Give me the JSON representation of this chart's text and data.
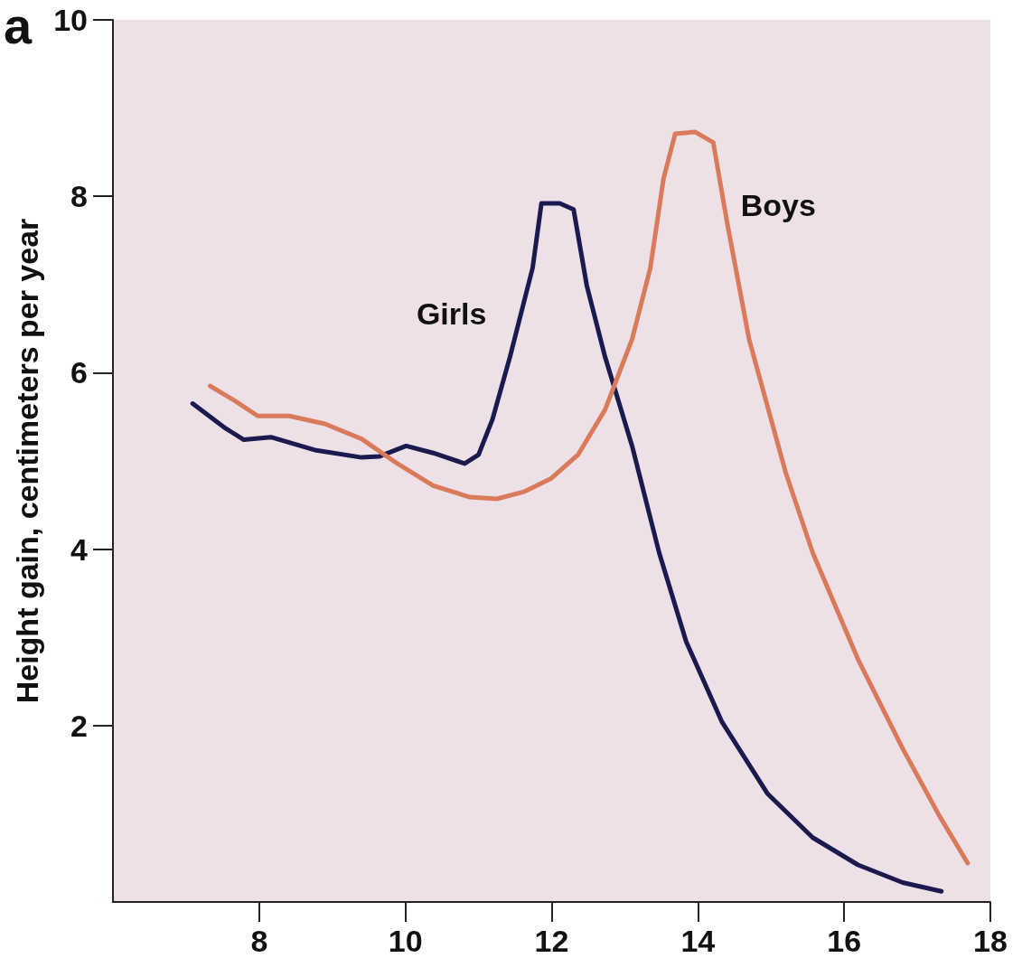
{
  "chart_data": {
    "type": "line",
    "ylabel": "Height gain, centimeters per year",
    "annotations": [
      "a"
    ],
    "xlim": [
      6,
      18
    ],
    "xticks": [
      8,
      10,
      12,
      14,
      16,
      18
    ],
    "ylim": [
      0,
      10
    ],
    "yticks": [
      2,
      4,
      6,
      8,
      10
    ],
    "grid": false,
    "legend": false,
    "marker": "none",
    "line_style": "solid",
    "series": [
      {
        "name": "Girls",
        "color": "#1a1a4e",
        "x": [
          7.09,
          7.54,
          7.79,
          8.16,
          8.78,
          9.4,
          9.64,
          10.01,
          10.38,
          10.81,
          11.0,
          11.19,
          11.43,
          11.74,
          11.86,
          12.11,
          12.3,
          12.48,
          12.73,
          13.1,
          13.47,
          13.84,
          14.33,
          14.95,
          15.57,
          16.19,
          16.8,
          17.33
        ],
        "values": [
          5.65,
          5.37,
          5.24,
          5.27,
          5.12,
          5.04,
          5.05,
          5.17,
          5.09,
          4.97,
          5.07,
          5.47,
          6.18,
          7.19,
          7.92,
          7.92,
          7.85,
          6.99,
          6.18,
          5.17,
          3.96,
          2.95,
          2.04,
          1.23,
          0.73,
          0.42,
          0.22,
          0.12
        ]
      },
      {
        "name": "Boys",
        "color": "#d97b5a",
        "x": [
          7.33,
          7.67,
          7.98,
          8.41,
          8.9,
          9.4,
          9.89,
          10.38,
          10.88,
          11.25,
          11.62,
          11.99,
          12.36,
          12.73,
          13.1,
          13.35,
          13.53,
          13.69,
          13.96,
          14.21,
          14.4,
          14.7,
          15.2,
          15.57,
          16.19,
          16.8,
          17.3,
          17.69
        ],
        "values": [
          5.85,
          5.68,
          5.51,
          5.51,
          5.42,
          5.25,
          4.97,
          4.72,
          4.59,
          4.57,
          4.65,
          4.8,
          5.07,
          5.58,
          6.38,
          7.19,
          8.2,
          8.71,
          8.73,
          8.61,
          7.7,
          6.38,
          4.87,
          3.96,
          2.75,
          1.74,
          0.98,
          0.44
        ]
      }
    ]
  }
}
